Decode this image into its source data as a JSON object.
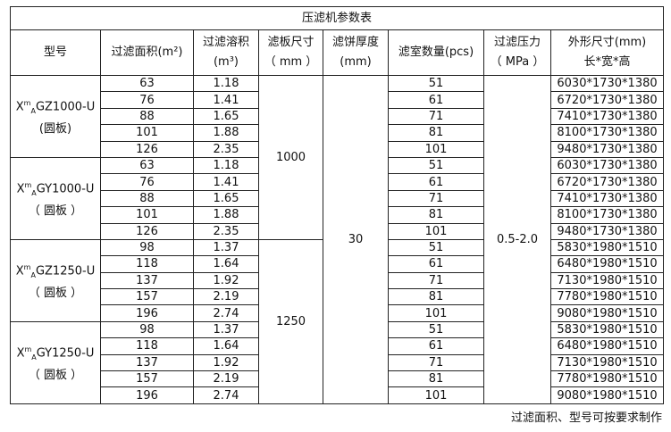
{
  "title": "压滤机参数表",
  "headers": {
    "model": "型号",
    "area": "过滤面积(m²)",
    "volume_line1": "过滤溶积",
    "volume_line2": "(m³)",
    "plate_line1": "滤板尺寸",
    "plate_line2": "（ mm ）",
    "cake_line1": "滤饼厚度",
    "cake_line2": "(mm)",
    "chambers": "滤室数量(pcs)",
    "pressure_line1": "过滤压力",
    "pressure_line2": "（ MPa ）",
    "dims_line1": "外形尺寸(mm)",
    "dims_line2": "长*宽*高"
  },
  "groups": [
    {
      "model": "XmAGZ1000-U",
      "model_sub": "(圆板)"
    },
    {
      "model": "XmAGY1000-U",
      "model_sub": "（ 圆板 ）"
    },
    {
      "model": "XmAGZ1250-U",
      "model_sub": "（ 圆板 ）"
    },
    {
      "model": "XmAGY1250-U",
      "model_sub": "（ 圆板 ）"
    }
  ],
  "plate_sizes": [
    "1000",
    "1250"
  ],
  "cake_thickness": "30",
  "pressure": "0.5-2.0",
  "rows": [
    {
      "area": "63",
      "volume": "1.18",
      "chambers": "51",
      "dims": "6030*1730*1380"
    },
    {
      "area": "76",
      "volume": "1.41",
      "chambers": "61",
      "dims": "6720*1730*1380"
    },
    {
      "area": "88",
      "volume": "1.65",
      "chambers": "71",
      "dims": "7410*1730*1380"
    },
    {
      "area": "101",
      "volume": "1.88",
      "chambers": "81",
      "dims": "8100*1730*1380"
    },
    {
      "area": "126",
      "volume": "2.35",
      "chambers": "101",
      "dims": "9480*1730*1380"
    },
    {
      "area": "63",
      "volume": "1.18",
      "chambers": "51",
      "dims": "6030*1730*1380"
    },
    {
      "area": "76",
      "volume": "1.41",
      "chambers": "61",
      "dims": "6720*1730*1380"
    },
    {
      "area": "88",
      "volume": "1.65",
      "chambers": "71",
      "dims": "7410*1730*1380"
    },
    {
      "area": "101",
      "volume": "1.88",
      "chambers": "81",
      "dims": "8100*1730*1380"
    },
    {
      "area": "126",
      "volume": "2.35",
      "chambers": "101",
      "dims": "9480*1730*1380"
    },
    {
      "area": "98",
      "volume": "1.37",
      "chambers": "51",
      "dims": "5830*1980*1510"
    },
    {
      "area": "118",
      "volume": "1.64",
      "chambers": "61",
      "dims": "6480*1980*1510"
    },
    {
      "area": "137",
      "volume": "1.92",
      "chambers": "71",
      "dims": "7130*1980*1510"
    },
    {
      "area": "157",
      "volume": "2.19",
      "chambers": "81",
      "dims": "7780*1980*1510"
    },
    {
      "area": "196",
      "volume": "2.74",
      "chambers": "101",
      "dims": "9080*1980*1510"
    },
    {
      "area": "98",
      "volume": "1.37",
      "chambers": "51",
      "dims": "5830*1980*1510"
    },
    {
      "area": "118",
      "volume": "1.64",
      "chambers": "61",
      "dims": "6480*1980*1510"
    },
    {
      "area": "137",
      "volume": "1.92",
      "chambers": "71",
      "dims": "7130*1980*1510"
    },
    {
      "area": "157",
      "volume": "2.19",
      "chambers": "81",
      "dims": "7780*1980*1510"
    },
    {
      "area": "196",
      "volume": "2.74",
      "chambers": "101",
      "dims": "9080*1980*1510"
    }
  ],
  "footer": "过滤面积、型号可按要求制作"
}
